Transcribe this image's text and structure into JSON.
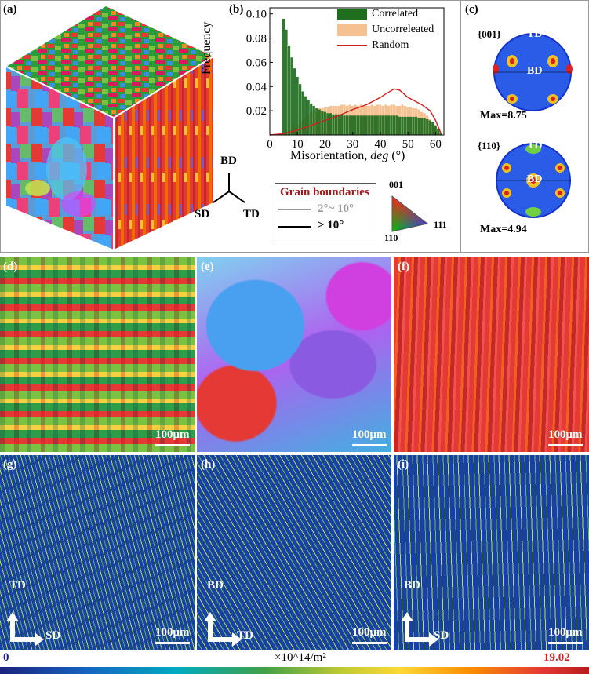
{
  "panel_labels": {
    "a": "(a)",
    "b": "(b)",
    "c": "(c)",
    "d": "(d)",
    "e": "(e)",
    "f": "(f)",
    "g": "(g)",
    "h": "(h)",
    "i": "(i)"
  },
  "axes_a": {
    "bd": "BD",
    "sd": "SD",
    "td": "TD"
  },
  "chart_data": {
    "type": "bar",
    "xlabel": "Misorientation, deg (°)",
    "xlabel_main": "Misorientation, ",
    "xlabel_ital": "deg",
    "xlabel_unit": " (°)",
    "ylabel": "Frequency",
    "xlim": [
      0,
      63
    ],
    "ylim": [
      0,
      0.105
    ],
    "xticks": [
      "0",
      "10",
      "20",
      "30",
      "40",
      "50",
      "60"
    ],
    "yticks": [
      "0.02",
      "0.04",
      "0.06",
      "0.08",
      "0.10"
    ],
    "legend_position": "top-right",
    "series": [
      {
        "name": "Correlated",
        "color": "#1e6e1e",
        "x": [
          5,
          6,
          7,
          8,
          9,
          10,
          11,
          12,
          13,
          14,
          15,
          16,
          17,
          18,
          19,
          20,
          21,
          22,
          23,
          24,
          25,
          26,
          27,
          28,
          29,
          30,
          31,
          32,
          33,
          34,
          35,
          36,
          37,
          38,
          39,
          40,
          41,
          42,
          43,
          44,
          45,
          46,
          47,
          48,
          49,
          50,
          51,
          52,
          53,
          54,
          55,
          56,
          57,
          58,
          59,
          60,
          61,
          62
        ],
        "values": [
          0.096,
          0.087,
          0.074,
          0.064,
          0.055,
          0.048,
          0.042,
          0.036,
          0.032,
          0.029,
          0.026,
          0.024,
          0.022,
          0.021,
          0.02,
          0.019,
          0.018,
          0.018,
          0.017,
          0.017,
          0.017,
          0.017,
          0.016,
          0.016,
          0.016,
          0.016,
          0.016,
          0.016,
          0.016,
          0.016,
          0.016,
          0.016,
          0.016,
          0.016,
          0.016,
          0.016,
          0.016,
          0.016,
          0.016,
          0.016,
          0.016,
          0.016,
          0.015,
          0.015,
          0.015,
          0.015,
          0.015,
          0.015,
          0.015,
          0.014,
          0.014,
          0.014,
          0.013,
          0.012,
          0.011,
          0.008,
          0.005,
          0.002
        ]
      },
      {
        "name": "Uncorreleated",
        "color": "#f5c190",
        "x": [
          5,
          6,
          7,
          8,
          9,
          10,
          11,
          12,
          13,
          14,
          15,
          16,
          17,
          18,
          19,
          20,
          21,
          22,
          23,
          24,
          25,
          26,
          27,
          28,
          29,
          30,
          31,
          32,
          33,
          34,
          35,
          36,
          37,
          38,
          39,
          40,
          41,
          42,
          43,
          44,
          45,
          46,
          47,
          48,
          49,
          50,
          51,
          52,
          53,
          54,
          55,
          56,
          57,
          58,
          59,
          60,
          61,
          62
        ],
        "values": [
          0.002,
          0.003,
          0.004,
          0.005,
          0.007,
          0.009,
          0.011,
          0.013,
          0.015,
          0.017,
          0.019,
          0.02,
          0.021,
          0.022,
          0.022,
          0.023,
          0.023,
          0.024,
          0.024,
          0.024,
          0.024,
          0.025,
          0.025,
          0.024,
          0.025,
          0.024,
          0.025,
          0.024,
          0.025,
          0.024,
          0.024,
          0.024,
          0.025,
          0.024,
          0.025,
          0.025,
          0.024,
          0.025,
          0.024,
          0.025,
          0.025,
          0.024,
          0.024,
          0.025,
          0.024,
          0.023,
          0.023,
          0.022,
          0.022,
          0.021,
          0.019,
          0.018,
          0.016,
          0.013,
          0.01,
          0.007,
          0.004,
          0.002
        ]
      },
      {
        "name": "Random",
        "color": "#d02020",
        "type": "line",
        "x": [
          0,
          5,
          10,
          15,
          20,
          25,
          30,
          35,
          40,
          42,
          45,
          47,
          50,
          55,
          58,
          60,
          62
        ],
        "values": [
          0,
          0.001,
          0.004,
          0.008,
          0.012,
          0.016,
          0.021,
          0.025,
          0.031,
          0.034,
          0.038,
          0.037,
          0.031,
          0.025,
          0.02,
          0.012,
          0.001
        ]
      }
    ]
  },
  "grain_boundaries": {
    "title": "Grain boundaries",
    "low": "2°~ 10°",
    "high": "> 10°"
  },
  "ipf_key": {
    "c001": "001",
    "c110": "110",
    "c111": "111"
  },
  "pole_figures": [
    {
      "label": "{001}",
      "max": "Max=8.75",
      "td": "TD",
      "bd": "BD"
    },
    {
      "label": "{110}",
      "max": "Max=4.94",
      "td": "TD",
      "bd": "BD"
    }
  ],
  "scale_bar": "100μm",
  "axes_g": {
    "up": "TD",
    "right": "SD"
  },
  "axes_h": {
    "up": "BD",
    "right": "TD"
  },
  "axes_i": {
    "up": "BD",
    "right": "SD"
  },
  "colorbar": {
    "min": "0",
    "max": "19.02",
    "unit": "×10^14/m²",
    "min_color": "#1a237e",
    "max_color": "#c62828"
  }
}
